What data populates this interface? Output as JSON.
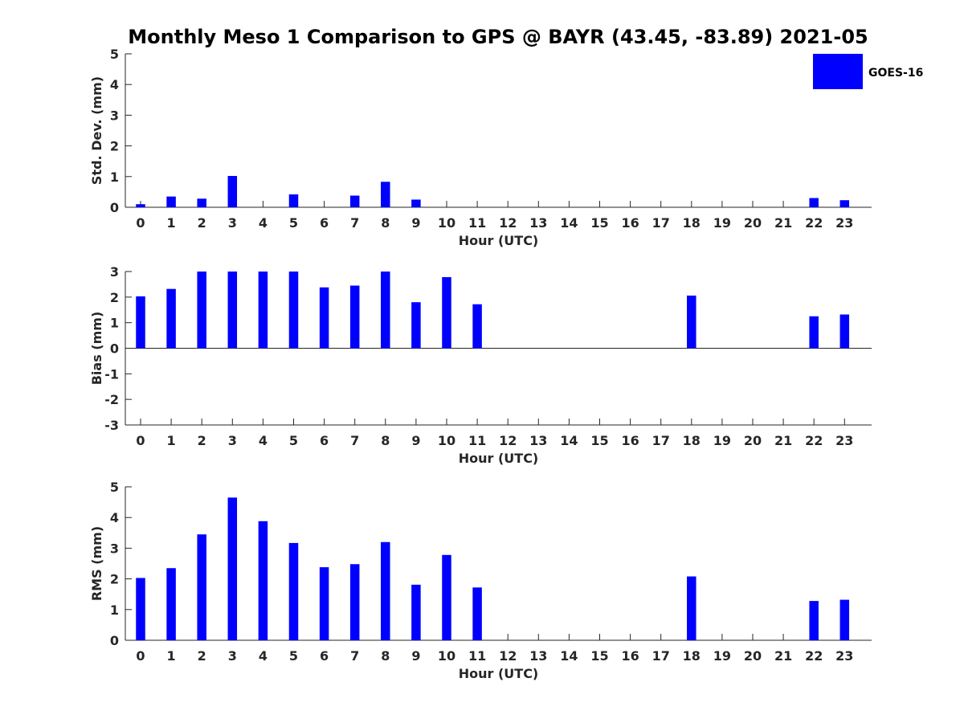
{
  "chart_data": {
    "title": "Monthly Meso 1 Comparison to GPS @ BAYR (43.45, -83.89) 2021-05",
    "legend": {
      "entries": [
        "GOES-16"
      ],
      "position": "top-right"
    },
    "color": "#0000ff",
    "panels": [
      {
        "type": "bar",
        "ylabel": "Std. Dev. (mm)",
        "xlabel": "Hour (UTC)",
        "ylim": [
          0,
          5
        ],
        "yticks": [
          "0",
          "1",
          "2",
          "3",
          "4",
          "5"
        ],
        "categories": [
          "0",
          "1",
          "2",
          "3",
          "4",
          "5",
          "6",
          "7",
          "8",
          "9",
          "10",
          "11",
          "12",
          "13",
          "14",
          "15",
          "16",
          "17",
          "18",
          "19",
          "20",
          "21",
          "22",
          "23"
        ],
        "values": [
          0.1,
          0.35,
          0.28,
          1.02,
          null,
          0.42,
          null,
          0.38,
          0.83,
          0.25,
          null,
          null,
          null,
          null,
          null,
          null,
          null,
          null,
          null,
          null,
          null,
          null,
          0.3,
          0.23
        ]
      },
      {
        "type": "bar",
        "ylabel": "Bias (mm)",
        "xlabel": "Hour (UTC)",
        "ylim": [
          -3,
          3
        ],
        "yticks": [
          "-3",
          "-2",
          "-1",
          "0",
          "1",
          "2",
          "3"
        ],
        "categories": [
          "0",
          "1",
          "2",
          "3",
          "4",
          "5",
          "6",
          "7",
          "8",
          "9",
          "10",
          "11",
          "12",
          "13",
          "14",
          "15",
          "16",
          "17",
          "18",
          "19",
          "20",
          "21",
          "22",
          "23"
        ],
        "values": [
          2.03,
          2.32,
          3.0,
          3.0,
          3.0,
          3.0,
          2.38,
          2.45,
          3.0,
          1.8,
          2.78,
          1.72,
          null,
          null,
          null,
          null,
          null,
          null,
          2.06,
          null,
          null,
          null,
          1.25,
          1.32
        ]
      },
      {
        "type": "bar",
        "ylabel": "RMS (mm)",
        "xlabel": "Hour (UTC)",
        "ylim": [
          0,
          5
        ],
        "yticks": [
          "0",
          "1",
          "2",
          "3",
          "4",
          "5"
        ],
        "categories": [
          "0",
          "1",
          "2",
          "3",
          "4",
          "5",
          "6",
          "7",
          "8",
          "9",
          "10",
          "11",
          "12",
          "13",
          "14",
          "15",
          "16",
          "17",
          "18",
          "19",
          "20",
          "21",
          "22",
          "23"
        ],
        "values": [
          2.03,
          2.35,
          3.45,
          4.65,
          3.88,
          3.17,
          2.38,
          2.48,
          3.2,
          1.81,
          2.78,
          1.72,
          null,
          null,
          null,
          null,
          null,
          null,
          2.08,
          null,
          null,
          null,
          1.28,
          1.32
        ]
      }
    ]
  }
}
